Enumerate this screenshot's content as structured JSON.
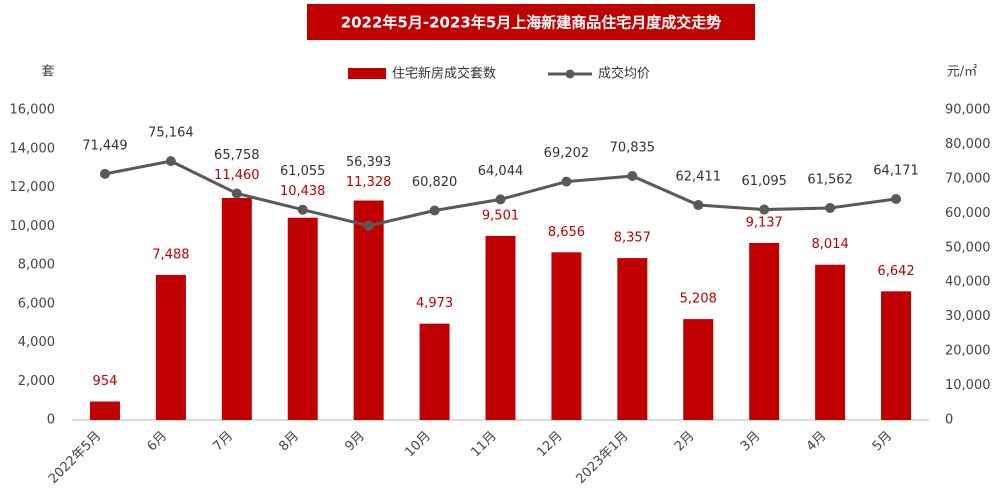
{
  "chart_data": {
    "type": "bar_line",
    "title": "2022年5月-2023年5月上海新建商品住宅月度成交走势",
    "y_unit": "套",
    "y2_unit": "元/㎡",
    "categories": [
      "2022年5月",
      "6月",
      "7月",
      "8月",
      "9月",
      "10月",
      "11月",
      "12月",
      "2023年1月",
      "2月",
      "3月",
      "4月",
      "5月"
    ],
    "series": [
      {
        "name": "住宅新房成交套数",
        "color": "#c00000",
        "kind": "bar",
        "values": [
          954,
          7488,
          11460,
          10438,
          11328,
          4973,
          9501,
          8656,
          8357,
          5208,
          9137,
          8014,
          6642
        ],
        "value_labels": [
          "954",
          "7,488",
          "11,460",
          "10,438",
          "11,328",
          "4,973",
          "9,501",
          "8,656",
          "8,357",
          "5,208",
          "9,137",
          "8,014",
          "6,642"
        ]
      },
      {
        "name": "成交均价",
        "color": "#595959",
        "kind": "line",
        "axis": "y2",
        "values": [
          71449,
          75164,
          65758,
          61055,
          56393,
          60820,
          64044,
          69202,
          70835,
          62411,
          61095,
          61562,
          64171
        ],
        "value_labels": [
          "71,449",
          "75,164",
          "65,758",
          "61,055",
          "56,393",
          "60,820",
          "64,044",
          "69,202",
          "70,835",
          "62,411",
          "61,095",
          "61,562",
          "64,171"
        ]
      }
    ],
    "ylim": [
      0,
      16000
    ],
    "yticks": [
      0,
      {
        "value": 2000,
        "label": "2,000"
      },
      {
        "value": 4000,
        "label": "4,000"
      },
      {
        "value": 6000,
        "label": "6,000"
      },
      {
        "value": 8000,
        "label": "8,000"
      },
      {
        "value": 10000,
        "label": "10,000"
      },
      {
        "value": 12000,
        "label": "12,000"
      },
      {
        "value": 14000,
        "label": "14,000"
      },
      {
        "value": 16000,
        "label": "16,000"
      }
    ],
    "y2lim": [
      0,
      90000
    ],
    "y2ticks": [
      0,
      {
        "value": 10000,
        "label": "10,000"
      },
      {
        "value": 20000,
        "label": "20,000"
      },
      {
        "value": 30000,
        "label": "30,000"
      },
      {
        "value": 40000,
        "label": "40,000"
      },
      {
        "value": 50000,
        "label": "50,000"
      },
      {
        "value": 60000,
        "label": "60,000"
      },
      {
        "value": 70000,
        "label": "70,000"
      },
      {
        "value": 80000,
        "label": "80,000"
      },
      {
        "value": 90000,
        "label": "90,000"
      }
    ],
    "legend": "top"
  }
}
